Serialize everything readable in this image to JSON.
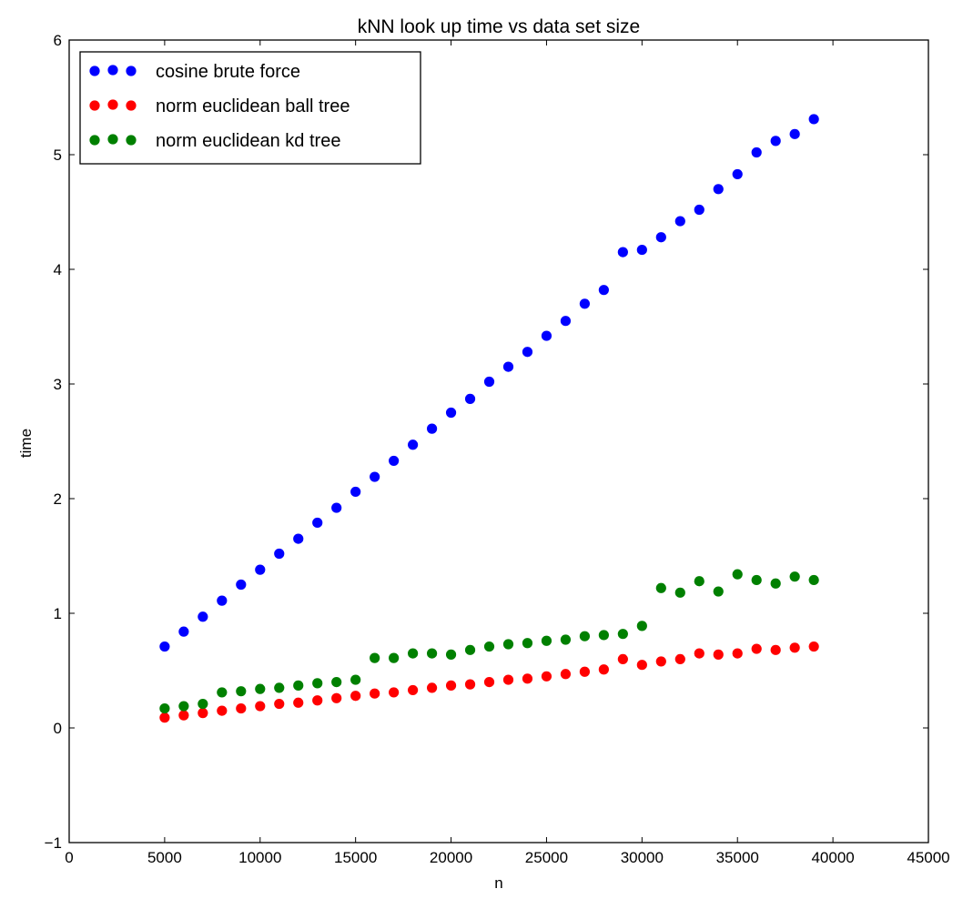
{
  "chart_data": {
    "type": "scatter",
    "title": "kNN look up time vs data set size",
    "xlabel": "n",
    "ylabel": "time",
    "xlim": [
      0,
      45000
    ],
    "ylim": [
      -1,
      6
    ],
    "xticks": [
      0,
      5000,
      10000,
      15000,
      20000,
      25000,
      30000,
      35000,
      40000,
      45000
    ],
    "yticks": [
      -1,
      0,
      1,
      2,
      3,
      4,
      5,
      6
    ],
    "grid": false,
    "legend_position": "top-left",
    "x": [
      5000,
      6000,
      7000,
      8000,
      9000,
      10000,
      11000,
      12000,
      13000,
      14000,
      15000,
      16000,
      17000,
      18000,
      19000,
      20000,
      21000,
      22000,
      23000,
      24000,
      25000,
      26000,
      27000,
      28000,
      29000,
      30000,
      31000,
      32000,
      33000,
      34000,
      35000,
      36000,
      37000,
      38000,
      39000
    ],
    "series": [
      {
        "name": "cosine brute force",
        "color": "#0000ff",
        "values": [
          0.71,
          0.84,
          0.97,
          1.11,
          1.25,
          1.38,
          1.52,
          1.65,
          1.79,
          1.92,
          2.06,
          2.19,
          2.33,
          2.47,
          2.61,
          2.75,
          2.87,
          3.02,
          3.15,
          3.28,
          3.42,
          3.55,
          3.7,
          3.82,
          4.15,
          4.17,
          4.28,
          4.42,
          4.52,
          4.7,
          4.83,
          5.02,
          5.12,
          5.18,
          5.31
        ]
      },
      {
        "name": "norm euclidean ball tree",
        "color": "#ff0000",
        "values": [
          0.09,
          0.11,
          0.13,
          0.15,
          0.17,
          0.19,
          0.21,
          0.22,
          0.24,
          0.26,
          0.28,
          0.3,
          0.31,
          0.33,
          0.35,
          0.37,
          0.38,
          0.4,
          0.42,
          0.43,
          0.45,
          0.47,
          0.49,
          0.51,
          0.6,
          0.55,
          0.58,
          0.6,
          0.65,
          0.64,
          0.65,
          0.69,
          0.68,
          0.7,
          0.71
        ]
      },
      {
        "name": "norm euclidean kd tree",
        "color": "#008000",
        "values": [
          0.17,
          0.19,
          0.21,
          0.31,
          0.32,
          0.34,
          0.35,
          0.37,
          0.39,
          0.4,
          0.42,
          0.61,
          0.61,
          0.65,
          0.65,
          0.64,
          0.68,
          0.71,
          0.73,
          0.74,
          0.76,
          0.77,
          0.8,
          0.81,
          0.82,
          0.89,
          1.22,
          1.18,
          1.28,
          1.19,
          1.34,
          1.29,
          1.26,
          1.32,
          1.29
        ]
      }
    ]
  }
}
